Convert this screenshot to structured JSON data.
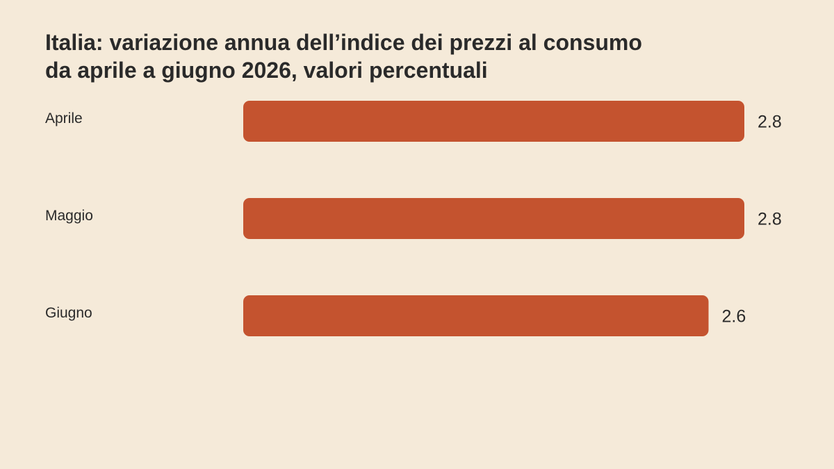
{
  "chart_data": {
    "type": "bar",
    "orientation": "horizontal",
    "title": "Italia: variazione annua dell’indice dei prezzi al consumo da aprile a giugno 2026, valori percentuali",
    "categories": [
      "Aprile",
      "Maggio",
      "Giugno"
    ],
    "values": [
      2.8,
      2.8,
      2.6
    ],
    "xlim": [
      0,
      2.8
    ],
    "grid": false,
    "legend": "none",
    "bar_color": "#c4532f"
  }
}
